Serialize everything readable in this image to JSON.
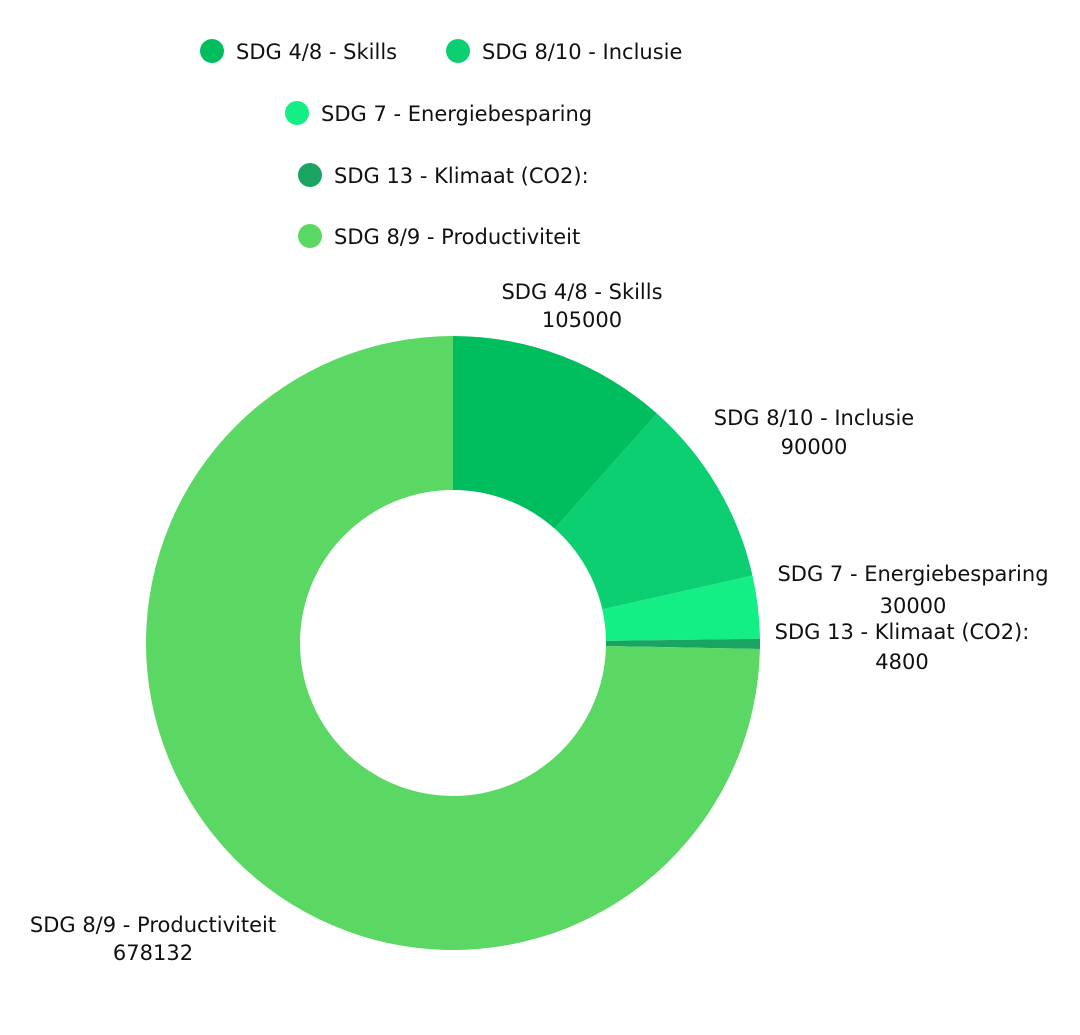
{
  "chart_data": {
    "type": "pie",
    "donut": true,
    "title": "",
    "legend_position": "top",
    "slices": [
      {
        "label": "SDG 4/8 - Skills",
        "value": 105000,
        "color": "#00bd5e"
      },
      {
        "label": "SDG 8/10 - Inclusie",
        "value": 90000,
        "color": "#0ccf72"
      },
      {
        "label": "SDG 7 - Energiebesparing",
        "value": 30000,
        "color": "#13ee85"
      },
      {
        "label": "SDG 13 - Klimaat (CO2):",
        "value": 4800,
        "color": "#1aa462"
      },
      {
        "label": "SDG 8/9 - Productiviteit",
        "value": 678132,
        "color": "#5bd864"
      }
    ]
  }
}
